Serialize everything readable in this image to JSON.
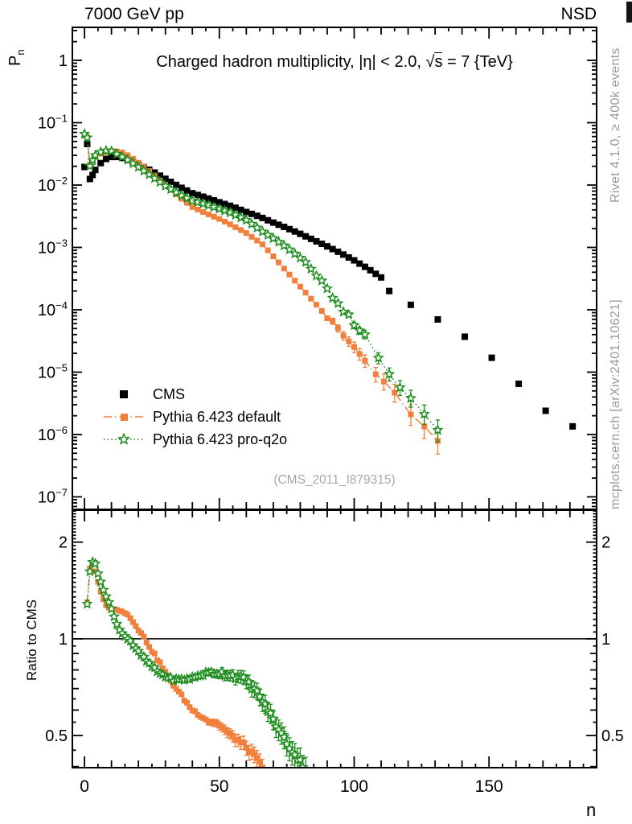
{
  "header": {
    "left": "7000 GeV pp",
    "right": "NSD"
  },
  "plot_title": {
    "prefix": "Charged hadron multiplicity, ",
    "eta": "|η| < 2.0, ",
    "sqrt": "√",
    "s": "s",
    "suffix": " = 7 {TeV}"
  },
  "axes": {
    "pn_base": "P",
    "pn_sub": "n",
    "ratio_ylabel": "Ratio to CMS",
    "xlabel": "n"
  },
  "legend": {
    "entries": [
      {
        "label": "CMS",
        "marker": "filled-square",
        "color_key": "cms"
      },
      {
        "label": "Pythia 6.423 default",
        "marker": "filled-square",
        "line": "dash-dot",
        "color_key": "default"
      },
      {
        "label": "Pythia 6.423 pro-q2o",
        "marker": "open-star",
        "line": "dotted",
        "color_key": "proq2o"
      }
    ]
  },
  "watermark": "(CMS_2011_I879315)",
  "side_notes": {
    "top": "Rivet 4.1.0, ≥ 400k events",
    "bottom": "mcplots.cern.ch [arXiv:2401.10621]"
  },
  "colors": {
    "cms": "#000000",
    "default": "#f0803c",
    "proq2o": "#1c8c1c",
    "gray_text": "#9a9a9a",
    "frame": "#000000"
  },
  "chart_data": {
    "type": "scatter",
    "xlim": [
      -4.5,
      189.9
    ],
    "xlabel": "n",
    "grid": false,
    "main_panel": {
      "ylabel": "P_n",
      "yscale": "log",
      "ylim": [
        6.3e-08,
        3.38
      ],
      "ytick_labels": [
        {
          "v": 1,
          "b": "1",
          "e": ""
        },
        {
          "v": 0.1,
          "b": "10",
          "e": "−1"
        },
        {
          "v": 0.01,
          "b": "10",
          "e": "−2"
        },
        {
          "v": 0.001,
          "b": "10",
          "e": "−3"
        },
        {
          "v": 0.0001,
          "b": "10",
          "e": "−4"
        },
        {
          "v": 1e-05,
          "b": "10",
          "e": "−5"
        },
        {
          "v": 1e-06,
          "b": "10",
          "e": "−6"
        },
        {
          "v": 1e-07,
          "b": "10",
          "e": "−7"
        }
      ],
      "series": [
        {
          "name": "CMS",
          "marker": "filled-square",
          "color_key": "cms",
          "line": "none",
          "dense_step": 2,
          "dense_max": 110,
          "anchors": [
            [
              0,
              0.0195
            ],
            [
              1,
              0.0455
            ],
            [
              2,
              0.0125
            ],
            [
              3,
              0.0145
            ],
            [
              4,
              0.0175
            ],
            [
              5,
              0.02
            ],
            [
              6,
              0.0225
            ],
            [
              8,
              0.0262
            ],
            [
              10,
              0.0282
            ],
            [
              12,
              0.0282
            ],
            [
              14,
              0.0272
            ],
            [
              16,
              0.0253
            ],
            [
              18,
              0.0233
            ],
            [
              20,
              0.0213
            ],
            [
              22,
              0.0194
            ],
            [
              25,
              0.0168
            ],
            [
              30,
              0.0126
            ],
            [
              35,
              0.0095
            ],
            [
              40,
              0.0074
            ],
            [
              45,
              0.0063
            ],
            [
              50,
              0.0053
            ],
            [
              55,
              0.0045
            ],
            [
              60,
              0.0037
            ],
            [
              65,
              0.0031
            ],
            [
              70,
              0.0025
            ],
            [
              75,
              0.00205
            ],
            [
              80,
              0.00165
            ],
            [
              85,
              0.00131
            ],
            [
              90,
              0.00104
            ],
            [
              95,
              0.00081
            ],
            [
              100,
              0.00062
            ],
            [
              105,
              0.00046
            ],
            [
              110,
              0.00033
            ]
          ],
          "tail_points": [
            [
              113,
              0.0002
            ],
            [
              121,
              0.00012
            ],
            [
              131,
              7e-05
            ],
            [
              141,
              3.7e-05
            ],
            [
              151,
              1.7e-05
            ],
            [
              161,
              6.5e-06
            ],
            [
              171,
              2.4e-06
            ],
            [
              181,
              1.35e-06
            ]
          ]
        },
        {
          "name": "Pythia 6.423 default",
          "marker": "filled-square",
          "color_key": "default",
          "line": "dash-dot",
          "dense_step": 2,
          "dense_max": 104,
          "anchors": [
            [
              0,
              0.062
            ],
            [
              1,
              0.0585
            ],
            [
              2,
              0.021
            ],
            [
              3,
              0.025
            ],
            [
              4,
              0.0285
            ],
            [
              5,
              0.0305
            ],
            [
              6,
              0.0318
            ],
            [
              8,
              0.0335
            ],
            [
              10,
              0.035
            ],
            [
              12,
              0.0347
            ],
            [
              14,
              0.0332
            ],
            [
              16,
              0.0301
            ],
            [
              18,
              0.0263
            ],
            [
              20,
              0.0228
            ],
            [
              22,
              0.0196
            ],
            [
              25,
              0.0155
            ],
            [
              30,
              0.0099
            ],
            [
              35,
              0.0065
            ],
            [
              40,
              0.00444
            ],
            [
              45,
              0.00354
            ],
            [
              50,
              0.00286
            ],
            [
              55,
              0.00223
            ],
            [
              60,
              0.0017
            ],
            [
              66,
              0.00112
            ],
            [
              70,
              0.00072
            ],
            [
              75,
              0.00041
            ],
            [
              80,
              0.000235
            ],
            [
              85,
              0.000135
            ],
            [
              90,
              7.7e-05
            ],
            [
              95,
              4.4e-05
            ],
            [
              100,
              2.5e-05
            ],
            [
              104,
              1.6e-05
            ]
          ],
          "tail_points": [
            [
              108,
              9.8e-06
            ],
            [
              111,
              7e-06
            ],
            [
              115,
              4.4e-06
            ],
            [
              121,
              2.2e-06
            ],
            [
              126,
              1.3e-06
            ],
            [
              131,
              8e-07
            ]
          ]
        },
        {
          "name": "Pythia 6.423 pro-q2o",
          "marker": "open-star",
          "color_key": "proq2o",
          "line": "dotted",
          "dense_step": 2,
          "dense_max": 104,
          "anchors": [
            [
              0,
              0.066
            ],
            [
              1,
              0.0576
            ],
            [
              2,
              0.0203
            ],
            [
              3,
              0.0252
            ],
            [
              4,
              0.0301
            ],
            [
              5,
              0.032
            ],
            [
              6,
              0.0338
            ],
            [
              8,
              0.0356
            ],
            [
              10,
              0.035
            ],
            [
              12,
              0.0313
            ],
            [
              14,
              0.0283
            ],
            [
              16,
              0.0253
            ],
            [
              18,
              0.0222
            ],
            [
              20,
              0.0194
            ],
            [
              22,
              0.0169
            ],
            [
              25,
              0.0138
            ],
            [
              30,
              0.00964
            ],
            [
              35,
              0.00713
            ],
            [
              40,
              0.00559
            ],
            [
              45,
              0.0049
            ],
            [
              50,
              0.00416
            ],
            [
              55,
              0.00349
            ],
            [
              60,
              0.00274
            ],
            [
              66,
              0.00179
            ],
            [
              70,
              0.0014
            ],
            [
              75,
              0.001
            ],
            [
              80,
              0.00068
            ],
            [
              82,
              0.00058
            ],
            [
              85,
              0.0004
            ],
            [
              90,
              0.00021
            ],
            [
              96,
              0.0001
            ],
            [
              100,
              6.1e-05
            ],
            [
              104,
              3.7e-05
            ]
          ],
          "tail_points": [
            [
              109,
              1.6e-05
            ],
            [
              113,
              9.5e-06
            ],
            [
              117,
              6e-06
            ],
            [
              121,
              3.8e-06
            ],
            [
              126,
              2.1e-06
            ],
            [
              131,
              1.25e-06
            ]
          ]
        }
      ]
    },
    "ratio_panel": {
      "ylabel": "Ratio to CMS",
      "yscale": "log",
      "ylim": [
        0.397,
        2.515
      ],
      "reference_line": 1,
      "ytick_labels": [
        {
          "v": 2,
          "t": "2"
        },
        {
          "v": 1,
          "t": "1"
        },
        {
          "v": 0.5,
          "t": "0.5"
        }
      ],
      "xticks": [
        0,
        50,
        100,
        150
      ],
      "xtick_minor_step": 5,
      "xtick_mid_step": 10,
      "series": [
        {
          "name": "Pythia 6.423 default / CMS",
          "marker": "filled-square",
          "color_key": "default",
          "line": "dash-dot",
          "n_min": 1,
          "n_max": 66,
          "anchors": [
            [
              1,
              1.3
            ],
            [
              2,
              1.66
            ],
            [
              3,
              1.72
            ],
            [
              4,
              1.62
            ],
            [
              5,
              1.5
            ],
            [
              6,
              1.4
            ],
            [
              8,
              1.27
            ],
            [
              10,
              1.24
            ],
            [
              12,
              1.23
            ],
            [
              14,
              1.22
            ],
            [
              16,
              1.19
            ],
            [
              18,
              1.13
            ],
            [
              20,
              1.07
            ],
            [
              22,
              1.01
            ],
            [
              24,
              0.95
            ],
            [
              26,
              0.89
            ],
            [
              28,
              0.84
            ],
            [
              30,
              0.785
            ],
            [
              32,
              0.74
            ],
            [
              34,
              0.7
            ],
            [
              36,
              0.665
            ],
            [
              38,
              0.63
            ],
            [
              40,
              0.6
            ],
            [
              42,
              0.585
            ],
            [
              44,
              0.57
            ],
            [
              46,
              0.555
            ],
            [
              48,
              0.55
            ],
            [
              50,
              0.54
            ],
            [
              52,
              0.52
            ],
            [
              54,
              0.5
            ],
            [
              56,
              0.49
            ],
            [
              58,
              0.475
            ],
            [
              60,
              0.46
            ],
            [
              62,
              0.44
            ],
            [
              64,
              0.42
            ],
            [
              66,
              0.4
            ]
          ]
        },
        {
          "name": "Pythia 6.423 pro-q2o / CMS",
          "marker": "open-star",
          "color_key": "proq2o",
          "line": "dotted",
          "n_min": 1,
          "n_max": 82,
          "anchors": [
            [
              1,
              1.28
            ],
            [
              2,
              1.62
            ],
            [
              3,
              1.74
            ],
            [
              4,
              1.72
            ],
            [
              5,
              1.6
            ],
            [
              6,
              1.5
            ],
            [
              7,
              1.42
            ],
            [
              8,
              1.36
            ],
            [
              9,
              1.3
            ],
            [
              10,
              1.24
            ],
            [
              11,
              1.17
            ],
            [
              12,
              1.11
            ],
            [
              13,
              1.07
            ],
            [
              14,
              1.04
            ],
            [
              15,
              1.02
            ],
            [
              16,
              1.0
            ],
            [
              17,
              0.985
            ],
            [
              18,
              0.955
            ],
            [
              19,
              0.93
            ],
            [
              20,
              0.91
            ],
            [
              22,
              0.87
            ],
            [
              24,
              0.835
            ],
            [
              26,
              0.805
            ],
            [
              28,
              0.78
            ],
            [
              30,
              0.765
            ],
            [
              32,
              0.75
            ],
            [
              34,
              0.745
            ],
            [
              36,
              0.745
            ],
            [
              38,
              0.75
            ],
            [
              40,
              0.755
            ],
            [
              42,
              0.765
            ],
            [
              44,
              0.775
            ],
            [
              46,
              0.78
            ],
            [
              48,
              0.785
            ],
            [
              50,
              0.785
            ],
            [
              52,
              0.78
            ],
            [
              54,
              0.775
            ],
            [
              56,
              0.765
            ],
            [
              58,
              0.755
            ],
            [
              60,
              0.74
            ],
            [
              62,
              0.71
            ],
            [
              64,
              0.68
            ],
            [
              66,
              0.64
            ],
            [
              68,
              0.6
            ],
            [
              70,
              0.56
            ],
            [
              72,
              0.52
            ],
            [
              74,
              0.49
            ],
            [
              76,
              0.46
            ],
            [
              78,
              0.435
            ],
            [
              80,
              0.415
            ],
            [
              82,
              0.395
            ]
          ]
        }
      ]
    }
  }
}
